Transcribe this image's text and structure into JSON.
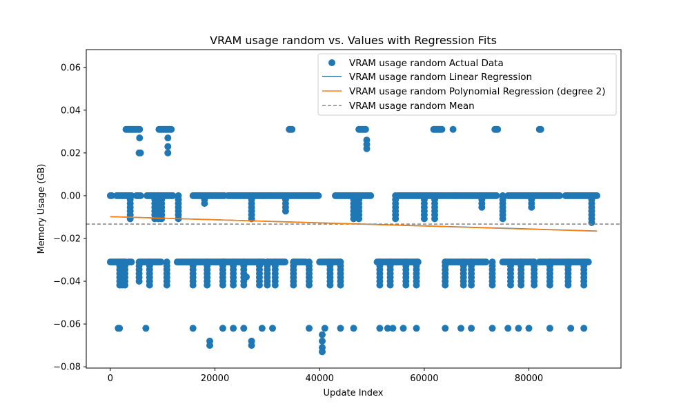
{
  "chart_data": {
    "type": "scatter",
    "title": "VRAM usage random vs. Values with Regression Fits",
    "xlabel": "Update Index",
    "ylabel": "Memory Usage (GB)",
    "xlim": [
      -4600,
      97600
    ],
    "ylim": [
      -0.0806,
      0.0683
    ],
    "x_ticks": [
      0,
      20000,
      40000,
      60000,
      80000
    ],
    "x_tick_labels": [
      "0",
      "20000",
      "40000",
      "60000",
      "80000"
    ],
    "y_ticks": [
      0.06,
      0.04,
      0.02,
      0.0,
      -0.02,
      -0.04,
      -0.06,
      -0.08
    ],
    "y_tick_labels": [
      "0.06",
      "0.04",
      "0.02",
      "0.00",
      "−0.02",
      "−0.04",
      "−0.06",
      "−0.08"
    ],
    "grid": false,
    "legend_position": "upper-right",
    "series": [
      {
        "name": "VRAM usage random Actual Data",
        "kind": "scatter",
        "color": "#1f77b4",
        "clusters": [
          {
            "x_start": 0,
            "x_end": 500,
            "y": 0.0
          },
          {
            "x_start": 0,
            "x_end": 3000,
            "y": -0.031
          },
          {
            "x_start": 1200,
            "x_end": 4200,
            "y": 0.0
          },
          {
            "x_start": 1500,
            "x_end": 2000,
            "y": -0.062
          },
          {
            "x_start": 3000,
            "x_end": 5800,
            "y": 0.031
          },
          {
            "x_start": 3500,
            "x_end": 4200,
            "y": -0.031
          },
          {
            "x_start": 5000,
            "x_end": 6000,
            "y": 0.0
          },
          {
            "x_start": 5500,
            "x_end": 6000,
            "y": 0.02
          },
          {
            "x_start": 5800,
            "x_end": 9700,
            "y": -0.031
          },
          {
            "x_start": 7000,
            "x_end": 12000,
            "y": 0.0
          },
          {
            "x_start": 9300,
            "x_end": 11800,
            "y": 0.031
          },
          {
            "x_start": 12800,
            "x_end": 22000,
            "y": -0.031
          },
          {
            "x_start": 15800,
            "x_end": 22000,
            "y": 0.0
          },
          {
            "x_start": 21500,
            "x_end": 29500,
            "y": -0.031
          },
          {
            "x_start": 22500,
            "x_end": 33000,
            "y": 0.0
          },
          {
            "x_start": 30000,
            "x_end": 33500,
            "y": -0.031
          },
          {
            "x_start": 33000,
            "x_end": 40000,
            "y": 0.0
          },
          {
            "x_start": 34200,
            "x_end": 34800,
            "y": 0.031
          },
          {
            "x_start": 35000,
            "x_end": 37500,
            "y": -0.031
          },
          {
            "x_start": 40000,
            "x_end": 44000,
            "y": -0.031
          },
          {
            "x_start": 43000,
            "x_end": 50000,
            "y": 0.0
          },
          {
            "x_start": 47500,
            "x_end": 49000,
            "y": 0.031
          },
          {
            "x_start": 51000,
            "x_end": 59000,
            "y": -0.031
          },
          {
            "x_start": 55000,
            "x_end": 66000,
            "y": 0.0
          },
          {
            "x_start": 61800,
            "x_end": 63500,
            "y": 0.031
          },
          {
            "x_start": 64000,
            "x_end": 72000,
            "y": -0.031
          },
          {
            "x_start": 66000,
            "x_end": 74000,
            "y": 0.0
          },
          {
            "x_start": 73500,
            "x_end": 74200,
            "y": 0.031
          },
          {
            "x_start": 75000,
            "x_end": 81000,
            "y": -0.031
          },
          {
            "x_start": 76000,
            "x_end": 86000,
            "y": 0.0
          },
          {
            "x_start": 82000,
            "x_end": 82500,
            "y": 0.031
          },
          {
            "x_start": 82000,
            "x_end": 91500,
            "y": -0.031
          },
          {
            "x_start": 87000,
            "x_end": 93000,
            "y": 0.0
          }
        ],
        "outliers": [
          [
            6800,
            -0.062
          ],
          [
            15800,
            -0.062
          ],
          [
            19000,
            -0.068
          ],
          [
            19000,
            -0.07
          ],
          [
            21500,
            -0.062
          ],
          [
            23500,
            -0.062
          ],
          [
            25500,
            -0.062
          ],
          [
            27000,
            -0.068
          ],
          [
            27000,
            -0.07
          ],
          [
            29000,
            -0.062
          ],
          [
            31000,
            -0.062
          ],
          [
            38000,
            -0.062
          ],
          [
            40500,
            -0.065
          ],
          [
            40500,
            -0.068
          ],
          [
            40500,
            -0.071
          ],
          [
            40500,
            -0.073
          ],
          [
            41000,
            -0.062
          ],
          [
            44000,
            -0.062
          ],
          [
            46500,
            -0.062
          ],
          [
            51500,
            -0.062
          ],
          [
            53000,
            -0.062
          ],
          [
            54000,
            -0.062
          ],
          [
            56000,
            -0.062
          ],
          [
            58500,
            -0.062
          ],
          [
            64000,
            -0.062
          ],
          [
            67000,
            -0.062
          ],
          [
            69000,
            -0.062
          ],
          [
            73000,
            -0.062
          ],
          [
            76000,
            -0.062
          ],
          [
            78000,
            -0.062
          ],
          [
            80000,
            -0.062
          ],
          [
            84000,
            -0.062
          ],
          [
            88000,
            -0.062
          ],
          [
            90500,
            -0.062
          ],
          [
            26000,
            -0.038
          ],
          [
            65500,
            0.031
          ],
          [
            5600,
            0.027
          ],
          [
            11000,
            0.027
          ],
          [
            49000,
            0.026
          ],
          [
            49000,
            0.022
          ],
          [
            11000,
            0.023
          ],
          [
            11000,
            0.02
          ],
          [
            49000,
            0.024
          ]
        ],
        "column_drops": [
          {
            "x": 1800,
            "from": -0.031,
            "to": -0.042
          },
          {
            "x": 2300,
            "from": -0.031,
            "to": -0.042
          },
          {
            "x": 2800,
            "from": -0.031,
            "to": -0.042
          },
          {
            "x": 3800,
            "from": 0.0,
            "to": -0.011
          },
          {
            "x": 5500,
            "from": -0.031,
            "to": -0.04
          },
          {
            "x": 7500,
            "from": -0.031,
            "to": -0.042
          },
          {
            "x": 8500,
            "from": 0.0,
            "to": -0.011
          },
          {
            "x": 9200,
            "from": 0.0,
            "to": -0.011
          },
          {
            "x": 9800,
            "from": 0.0,
            "to": -0.011
          },
          {
            "x": 10800,
            "from": -0.031,
            "to": -0.042
          },
          {
            "x": 13000,
            "from": 0.0,
            "to": -0.011
          },
          {
            "x": 15800,
            "from": -0.031,
            "to": -0.042
          },
          {
            "x": 18000,
            "from": 0.0,
            "to": -0.004
          },
          {
            "x": 18500,
            "from": -0.031,
            "to": -0.042
          },
          {
            "x": 21500,
            "from": -0.031,
            "to": -0.042
          },
          {
            "x": 23500,
            "from": -0.031,
            "to": -0.042
          },
          {
            "x": 25500,
            "from": -0.031,
            "to": -0.042
          },
          {
            "x": 27000,
            "from": 0.0,
            "to": -0.011
          },
          {
            "x": 28500,
            "from": -0.031,
            "to": -0.042
          },
          {
            "x": 30000,
            "from": -0.031,
            "to": -0.042
          },
          {
            "x": 31500,
            "from": -0.031,
            "to": -0.042
          },
          {
            "x": 33500,
            "from": 0.0,
            "to": -0.008
          },
          {
            "x": 35000,
            "from": -0.031,
            "to": -0.042
          },
          {
            "x": 38000,
            "from": -0.031,
            "to": -0.042
          },
          {
            "x": 42000,
            "from": -0.031,
            "to": -0.042
          },
          {
            "x": 44000,
            "from": -0.031,
            "to": -0.042
          },
          {
            "x": 46500,
            "from": 0.0,
            "to": -0.011
          },
          {
            "x": 47500,
            "from": 0.0,
            "to": -0.011
          },
          {
            "x": 51500,
            "from": -0.031,
            "to": -0.042
          },
          {
            "x": 53500,
            "from": -0.031,
            "to": -0.042
          },
          {
            "x": 54500,
            "from": 0.0,
            "to": -0.011
          },
          {
            "x": 56500,
            "from": -0.031,
            "to": -0.042
          },
          {
            "x": 58500,
            "from": -0.031,
            "to": -0.042
          },
          {
            "x": 60000,
            "from": 0.0,
            "to": -0.011
          },
          {
            "x": 62000,
            "from": 0.0,
            "to": -0.011
          },
          {
            "x": 64000,
            "from": -0.031,
            "to": -0.042
          },
          {
            "x": 67500,
            "from": -0.031,
            "to": -0.042
          },
          {
            "x": 69000,
            "from": -0.031,
            "to": -0.042
          },
          {
            "x": 71000,
            "from": 0.0,
            "to": -0.007
          },
          {
            "x": 73000,
            "from": -0.031,
            "to": -0.042
          },
          {
            "x": 75000,
            "from": 0.0,
            "to": -0.011
          },
          {
            "x": 76500,
            "from": -0.031,
            "to": -0.042
          },
          {
            "x": 78500,
            "from": -0.031,
            "to": -0.042
          },
          {
            "x": 80500,
            "from": 0.0,
            "to": -0.007
          },
          {
            "x": 81000,
            "from": -0.031,
            "to": -0.042
          },
          {
            "x": 84000,
            "from": -0.031,
            "to": -0.042
          },
          {
            "x": 87500,
            "from": -0.031,
            "to": -0.042
          },
          {
            "x": 90500,
            "from": -0.031,
            "to": -0.042
          },
          {
            "x": 92000,
            "from": 0.0,
            "to": -0.013
          }
        ]
      },
      {
        "name": "VRAM usage random Linear Regression",
        "kind": "line",
        "color": "#1f77b4",
        "x": [
          0,
          93000
        ],
        "y": [
          -0.0098,
          -0.0165
        ]
      },
      {
        "name": "VRAM usage random Polynomial Regression (degree 2)",
        "kind": "line",
        "color": "#ff7f0e",
        "x": [
          0,
          93000
        ],
        "y": [
          -0.0098,
          -0.0166
        ]
      },
      {
        "name": "VRAM usage random Mean",
        "kind": "hline",
        "color": "#808080",
        "y": -0.0133
      }
    ]
  }
}
